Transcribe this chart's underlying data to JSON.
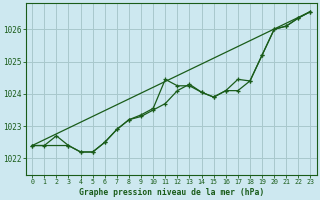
{
  "title": "Graphe pression niveau de la mer (hPa)",
  "bg_color": "#cde8f0",
  "grid_color": "#a8c8cc",
  "line_color": "#1a5c1a",
  "xlim": [
    -0.5,
    23.5
  ],
  "ylim": [
    1021.5,
    1026.8
  ],
  "yticks": [
    1022,
    1023,
    1024,
    1025,
    1026
  ],
  "xticks": [
    0,
    1,
    2,
    3,
    4,
    5,
    6,
    7,
    8,
    9,
    10,
    11,
    12,
    13,
    14,
    15,
    16,
    17,
    18,
    19,
    20,
    21,
    22,
    23
  ],
  "series_main_x": [
    0,
    1,
    2,
    3,
    4,
    5,
    6,
    7,
    8,
    9,
    10,
    11,
    12,
    13,
    14,
    15,
    16,
    17,
    18,
    19,
    20,
    21,
    22,
    23
  ],
  "series_main_y": [
    1022.4,
    1022.4,
    1022.7,
    1022.4,
    1022.2,
    1022.2,
    1022.5,
    1022.9,
    1023.2,
    1023.3,
    1023.5,
    1023.7,
    1024.1,
    1024.3,
    1024.05,
    1023.9,
    1024.1,
    1024.1,
    1024.4,
    1025.2,
    1026.0,
    1026.1,
    1026.35,
    1026.55
  ],
  "series_alt_x": [
    0,
    3,
    4,
    5,
    6,
    7,
    8,
    9,
    10,
    11,
    12,
    13,
    14,
    15,
    16,
    17,
    18,
    19,
    20,
    21,
    22,
    23
  ],
  "series_alt_y": [
    1022.4,
    1022.4,
    1022.2,
    1022.2,
    1022.5,
    1022.9,
    1023.2,
    1023.35,
    1023.55,
    1024.45,
    1024.25,
    1024.25,
    1024.05,
    1023.9,
    1024.1,
    1024.45,
    1024.4,
    1025.2,
    1026.0,
    1026.1,
    1026.35,
    1026.55
  ],
  "trend_x": [
    0,
    23
  ],
  "trend_y": [
    1022.4,
    1026.55
  ]
}
